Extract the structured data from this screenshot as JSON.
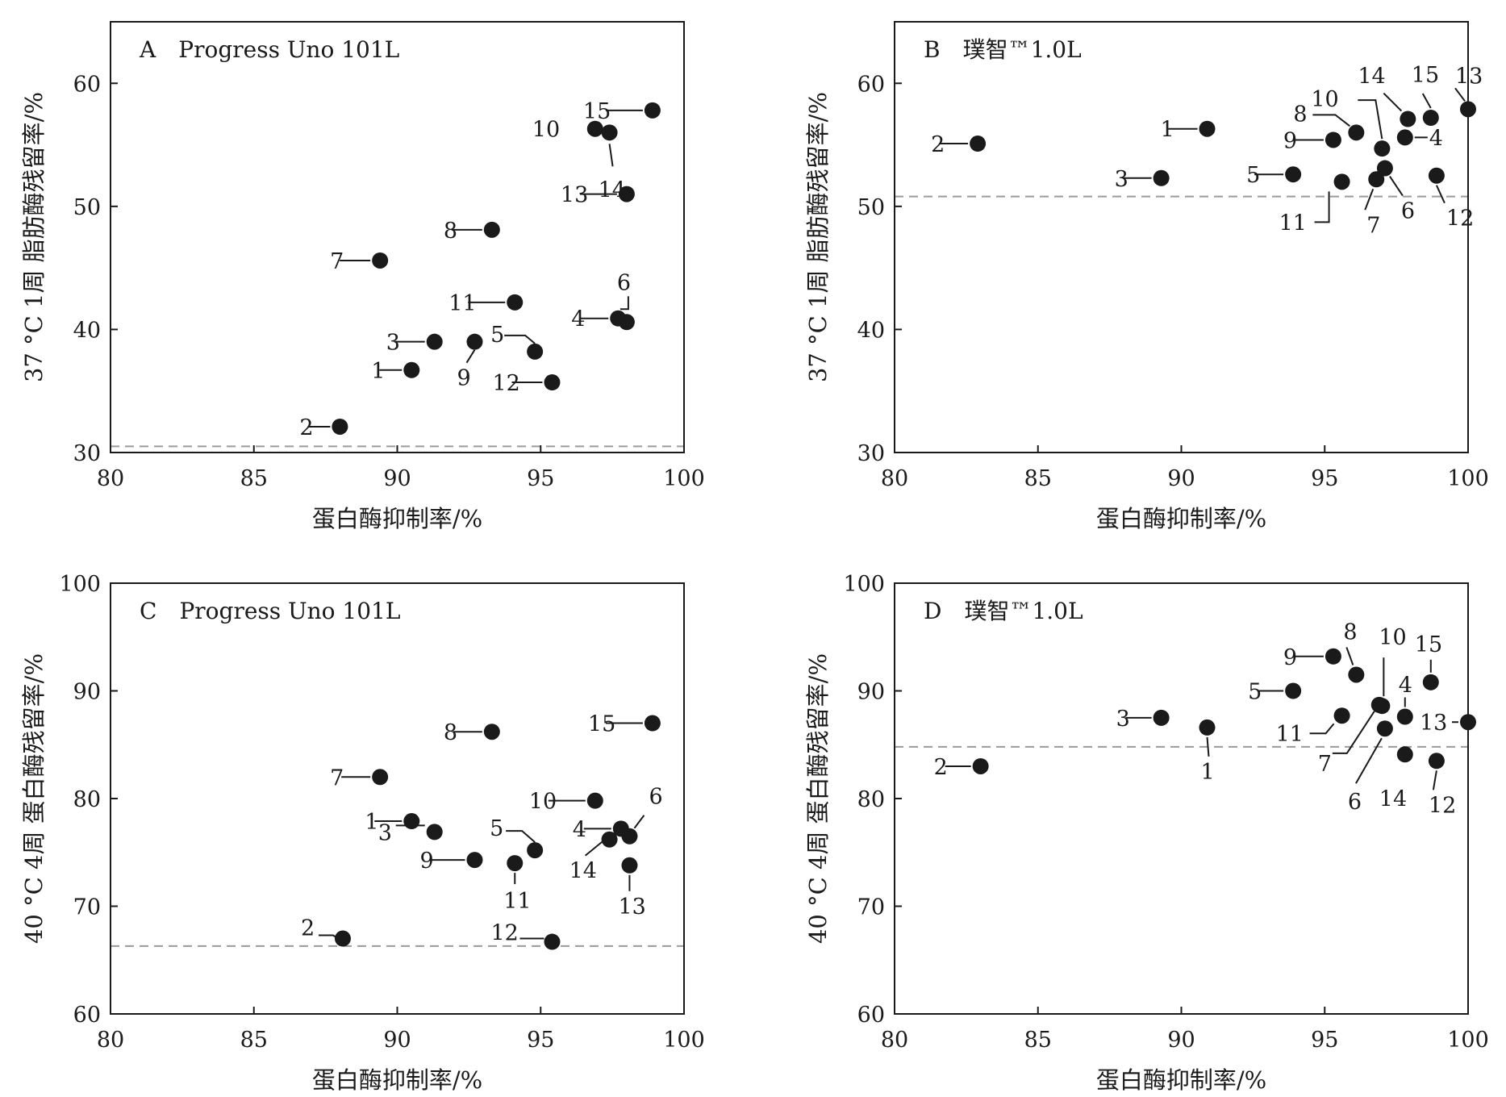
{
  "chart_data": [
    {
      "type": "scatter",
      "panel_letter": "A",
      "title": "Progress Uno 101L",
      "xlabel": "蛋白酶抑制率/%",
      "ylabel": "37 °C 1周 脂肪酶残留率/%",
      "xlim": [
        80,
        100
      ],
      "ylim": [
        30,
        65
      ],
      "xticks": [
        80,
        85,
        90,
        95,
        100
      ],
      "yticks": [
        30,
        40,
        50,
        60
      ],
      "reference_line_y": 30.5,
      "grid": false,
      "points": [
        {
          "label": "1",
          "x": 90.5,
          "y": 36.7
        },
        {
          "label": "2",
          "x": 88.0,
          "y": 32.1
        },
        {
          "label": "3",
          "x": 91.3,
          "y": 39.0
        },
        {
          "label": "4",
          "x": 97.7,
          "y": 40.9
        },
        {
          "label": "5",
          "x": 94.8,
          "y": 38.2
        },
        {
          "label": "6",
          "x": 98.0,
          "y": 40.6
        },
        {
          "label": "7",
          "x": 89.4,
          "y": 45.6
        },
        {
          "label": "8",
          "x": 93.3,
          "y": 48.1
        },
        {
          "label": "9",
          "x": 92.7,
          "y": 39.0
        },
        {
          "label": "10",
          "x": 96.9,
          "y": 56.3
        },
        {
          "label": "11",
          "x": 94.1,
          "y": 42.2
        },
        {
          "label": "12",
          "x": 95.4,
          "y": 35.7
        },
        {
          "label": "13",
          "x": 98.0,
          "y": 51.0
        },
        {
          "label": "14",
          "x": 97.4,
          "y": 56.0
        },
        {
          "label": "15",
          "x": 98.9,
          "y": 57.8
        }
      ]
    },
    {
      "type": "scatter",
      "panel_letter": "B",
      "title": "璞智™1.0L",
      "xlabel": "蛋白酶抑制率/%",
      "ylabel": "37 °C 1周 脂肪酶残留率/%",
      "xlim": [
        80,
        100
      ],
      "ylim": [
        30,
        65
      ],
      "xticks": [
        80,
        85,
        90,
        95,
        100
      ],
      "yticks": [
        30,
        40,
        50,
        60
      ],
      "reference_line_y": 50.8,
      "grid": false,
      "points": [
        {
          "label": "1",
          "x": 90.9,
          "y": 56.3
        },
        {
          "label": "2",
          "x": 82.9,
          "y": 55.1
        },
        {
          "label": "3",
          "x": 89.3,
          "y": 52.3
        },
        {
          "label": "4",
          "x": 97.8,
          "y": 55.6
        },
        {
          "label": "5",
          "x": 93.9,
          "y": 52.6
        },
        {
          "label": "6",
          "x": 97.1,
          "y": 53.1
        },
        {
          "label": "7",
          "x": 96.8,
          "y": 52.2
        },
        {
          "label": "8",
          "x": 96.1,
          "y": 56.0
        },
        {
          "label": "9",
          "x": 95.3,
          "y": 55.4
        },
        {
          "label": "10",
          "x": 97.0,
          "y": 54.7
        },
        {
          "label": "11",
          "x": 95.6,
          "y": 52.0
        },
        {
          "label": "12",
          "x": 98.9,
          "y": 52.5
        },
        {
          "label": "13",
          "x": 100.0,
          "y": 57.9
        },
        {
          "label": "14",
          "x": 97.9,
          "y": 57.1
        },
        {
          "label": "15",
          "x": 98.7,
          "y": 57.2
        }
      ]
    },
    {
      "type": "scatter",
      "panel_letter": "C",
      "title": "Progress Uno 101L",
      "xlabel": "蛋白酶抑制率/%",
      "ylabel": "40 °C 4周 蛋白酶残留率/%",
      "xlim": [
        80,
        100
      ],
      "ylim": [
        60,
        100
      ],
      "xticks": [
        80,
        85,
        90,
        95,
        100
      ],
      "yticks": [
        60,
        70,
        80,
        90,
        100
      ],
      "reference_line_y": 66.3,
      "grid": false,
      "points": [
        {
          "label": "1",
          "x": 90.5,
          "y": 77.9
        },
        {
          "label": "2",
          "x": 88.1,
          "y": 67.0
        },
        {
          "label": "3",
          "x": 91.3,
          "y": 76.9
        },
        {
          "label": "4",
          "x": 97.8,
          "y": 77.2
        },
        {
          "label": "5",
          "x": 94.8,
          "y": 75.2
        },
        {
          "label": "6",
          "x": 98.1,
          "y": 76.5
        },
        {
          "label": "7",
          "x": 89.4,
          "y": 82.0
        },
        {
          "label": "8",
          "x": 93.3,
          "y": 86.2
        },
        {
          "label": "9",
          "x": 92.7,
          "y": 74.3
        },
        {
          "label": "10",
          "x": 96.9,
          "y": 79.8
        },
        {
          "label": "11",
          "x": 94.1,
          "y": 74.0
        },
        {
          "label": "12",
          "x": 95.4,
          "y": 66.7
        },
        {
          "label": "13",
          "x": 98.1,
          "y": 73.8
        },
        {
          "label": "14",
          "x": 97.4,
          "y": 76.2
        },
        {
          "label": "15",
          "x": 98.9,
          "y": 87.0
        }
      ]
    },
    {
      "type": "scatter",
      "panel_letter": "D",
      "title": "璞智™1.0L",
      "xlabel": "蛋白酶抑制率/%",
      "ylabel": "40 °C 4周 蛋白酶残留率/%",
      "xlim": [
        80,
        100
      ],
      "ylim": [
        60,
        100
      ],
      "xticks": [
        80,
        85,
        90,
        95,
        100
      ],
      "yticks": [
        60,
        70,
        80,
        90,
        100
      ],
      "reference_line_y": 84.8,
      "grid": false,
      "points": [
        {
          "label": "1",
          "x": 90.9,
          "y": 86.6
        },
        {
          "label": "2",
          "x": 83.0,
          "y": 83.0
        },
        {
          "label": "3",
          "x": 89.3,
          "y": 87.5
        },
        {
          "label": "4",
          "x": 97.8,
          "y": 87.6
        },
        {
          "label": "5",
          "x": 93.9,
          "y": 90.0
        },
        {
          "label": "6",
          "x": 97.1,
          "y": 86.5
        },
        {
          "label": "7",
          "x": 96.9,
          "y": 88.7
        },
        {
          "label": "8",
          "x": 96.1,
          "y": 91.5
        },
        {
          "label": "9",
          "x": 95.3,
          "y": 93.2
        },
        {
          "label": "10",
          "x": 97.0,
          "y": 88.6
        },
        {
          "label": "11",
          "x": 95.6,
          "y": 87.7
        },
        {
          "label": "12",
          "x": 98.9,
          "y": 83.5
        },
        {
          "label": "13",
          "x": 100.0,
          "y": 87.1
        },
        {
          "label": "14",
          "x": 97.8,
          "y": 84.1
        },
        {
          "label": "15",
          "x": 98.7,
          "y": 90.8
        }
      ]
    }
  ]
}
